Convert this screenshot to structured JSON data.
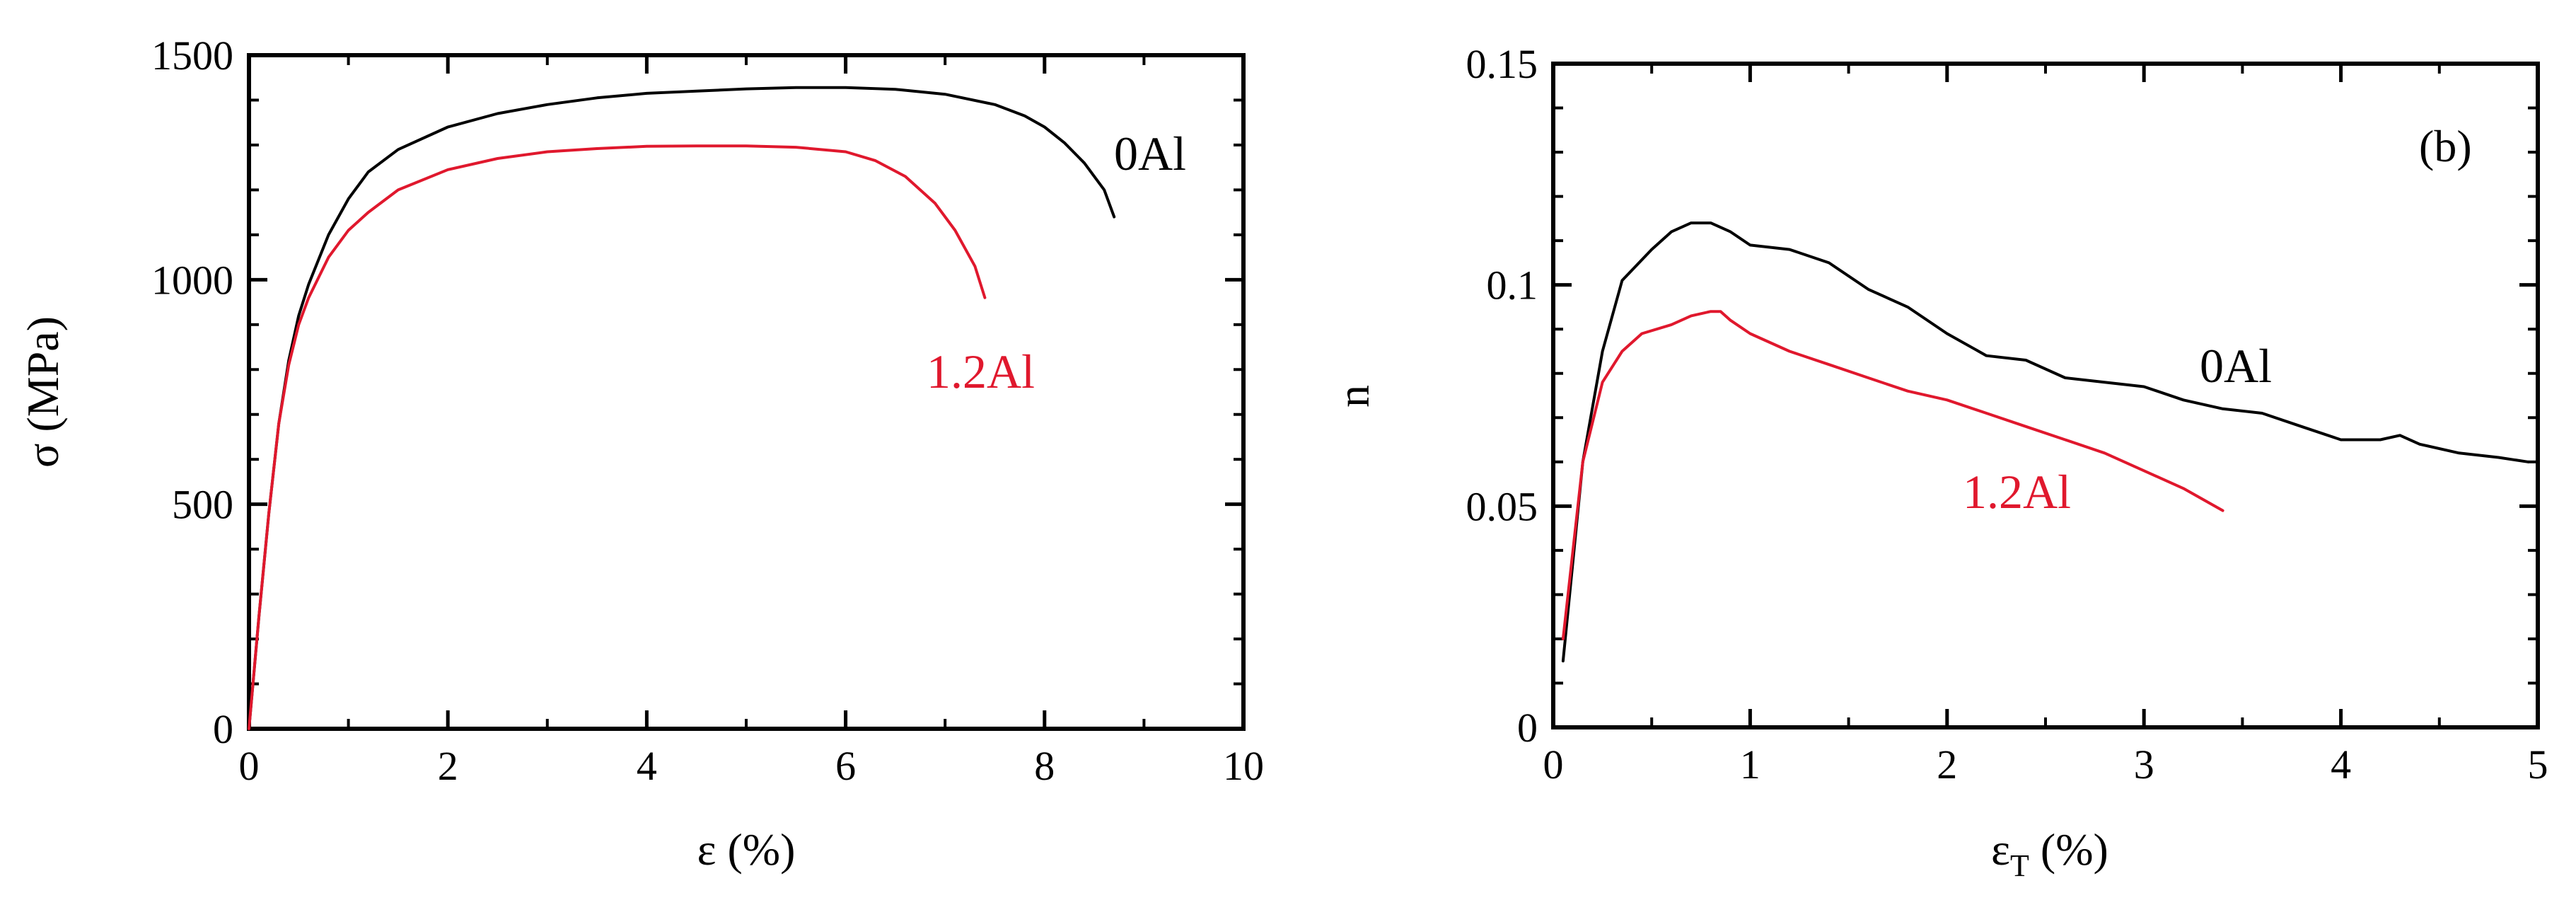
{
  "chart_data": [
    {
      "type": "line",
      "title": "",
      "xlabel": "ε (%)",
      "ylabel": "σ (MPa)",
      "xlim": [
        0,
        10
      ],
      "ylim": [
        0,
        1500
      ],
      "xticks": [
        "0",
        "2",
        "4",
        "6",
        "8",
        "10"
      ],
      "yticks": [
        "0",
        "500",
        "1000",
        "1500"
      ],
      "grid": false,
      "series": [
        {
          "name": "0Al",
          "color": "#000000",
          "x": [
            0,
            0.1,
            0.2,
            0.3,
            0.4,
            0.5,
            0.6,
            0.8,
            1.0,
            1.2,
            1.5,
            2.0,
            2.5,
            3.0,
            3.5,
            4.0,
            4.5,
            5.0,
            5.5,
            6.0,
            6.5,
            7.0,
            7.5,
            7.8,
            8.0,
            8.2,
            8.4,
            8.6,
            8.7
          ],
          "y": [
            0,
            250,
            480,
            680,
            820,
            920,
            990,
            1100,
            1180,
            1240,
            1290,
            1340,
            1370,
            1390,
            1405,
            1415,
            1420,
            1425,
            1428,
            1428,
            1424,
            1413,
            1390,
            1365,
            1340,
            1305,
            1260,
            1200,
            1140
          ]
        },
        {
          "name": "1.2Al",
          "color": "#e0182d",
          "x": [
            0,
            0.1,
            0.2,
            0.3,
            0.4,
            0.5,
            0.6,
            0.8,
            1.0,
            1.2,
            1.5,
            2.0,
            2.5,
            3.0,
            3.5,
            4.0,
            4.5,
            5.0,
            5.5,
            6.0,
            6.3,
            6.6,
            6.9,
            7.1,
            7.3,
            7.4
          ],
          "y": [
            0,
            250,
            480,
            680,
            810,
            900,
            960,
            1050,
            1110,
            1150,
            1200,
            1245,
            1270,
            1285,
            1292,
            1297,
            1298,
            1298,
            1295,
            1285,
            1265,
            1230,
            1170,
            1110,
            1030,
            960
          ]
        }
      ],
      "annotations": [
        "0Al",
        "1.2Al"
      ]
    },
    {
      "type": "line",
      "title": "",
      "panel_label": "(b)",
      "xlabel_main": "ε",
      "xlabel_sub": "T",
      "xlabel_rest": " (%)",
      "ylabel": "n",
      "xlim": [
        0,
        5
      ],
      "ylim": [
        0,
        0.15
      ],
      "xticks": [
        "0",
        "1",
        "2",
        "3",
        "4",
        "5"
      ],
      "yticks": [
        "0",
        "0.05",
        "0.1",
        "0.15"
      ],
      "grid": false,
      "series": [
        {
          "name": "0Al",
          "color": "#000000",
          "x": [
            0.05,
            0.15,
            0.25,
            0.35,
            0.5,
            0.6,
            0.7,
            0.8,
            0.9,
            1.0,
            1.2,
            1.4,
            1.6,
            1.8,
            2.0,
            2.2,
            2.4,
            2.6,
            2.8,
            3.0,
            3.2,
            3.4,
            3.6,
            3.8,
            4.0,
            4.2,
            4.3,
            4.4,
            4.6,
            4.8,
            4.95
          ],
          "y": [
            0.015,
            0.06,
            0.085,
            0.101,
            0.108,
            0.112,
            0.114,
            0.114,
            0.112,
            0.109,
            0.108,
            0.105,
            0.099,
            0.095,
            0.089,
            0.084,
            0.083,
            0.079,
            0.078,
            0.077,
            0.074,
            0.072,
            0.071,
            0.068,
            0.065,
            0.065,
            0.066,
            0.064,
            0.062,
            0.061,
            0.06
          ]
        },
        {
          "name": "1.2Al",
          "color": "#e0182d",
          "x": [
            0.05,
            0.15,
            0.25,
            0.35,
            0.45,
            0.6,
            0.7,
            0.8,
            0.85,
            0.9,
            1.0,
            1.2,
            1.4,
            1.6,
            1.8,
            2.0,
            2.2,
            2.4,
            2.6,
            2.8,
            3.0,
            3.2,
            3.4
          ],
          "y": [
            0.02,
            0.06,
            0.078,
            0.085,
            0.089,
            0.091,
            0.093,
            0.094,
            0.094,
            0.092,
            0.089,
            0.085,
            0.082,
            0.079,
            0.076,
            0.074,
            0.071,
            0.068,
            0.065,
            0.062,
            0.058,
            0.054,
            0.049
          ]
        }
      ],
      "annotations": [
        "(b)",
        "0Al",
        "1.2Al"
      ]
    }
  ]
}
